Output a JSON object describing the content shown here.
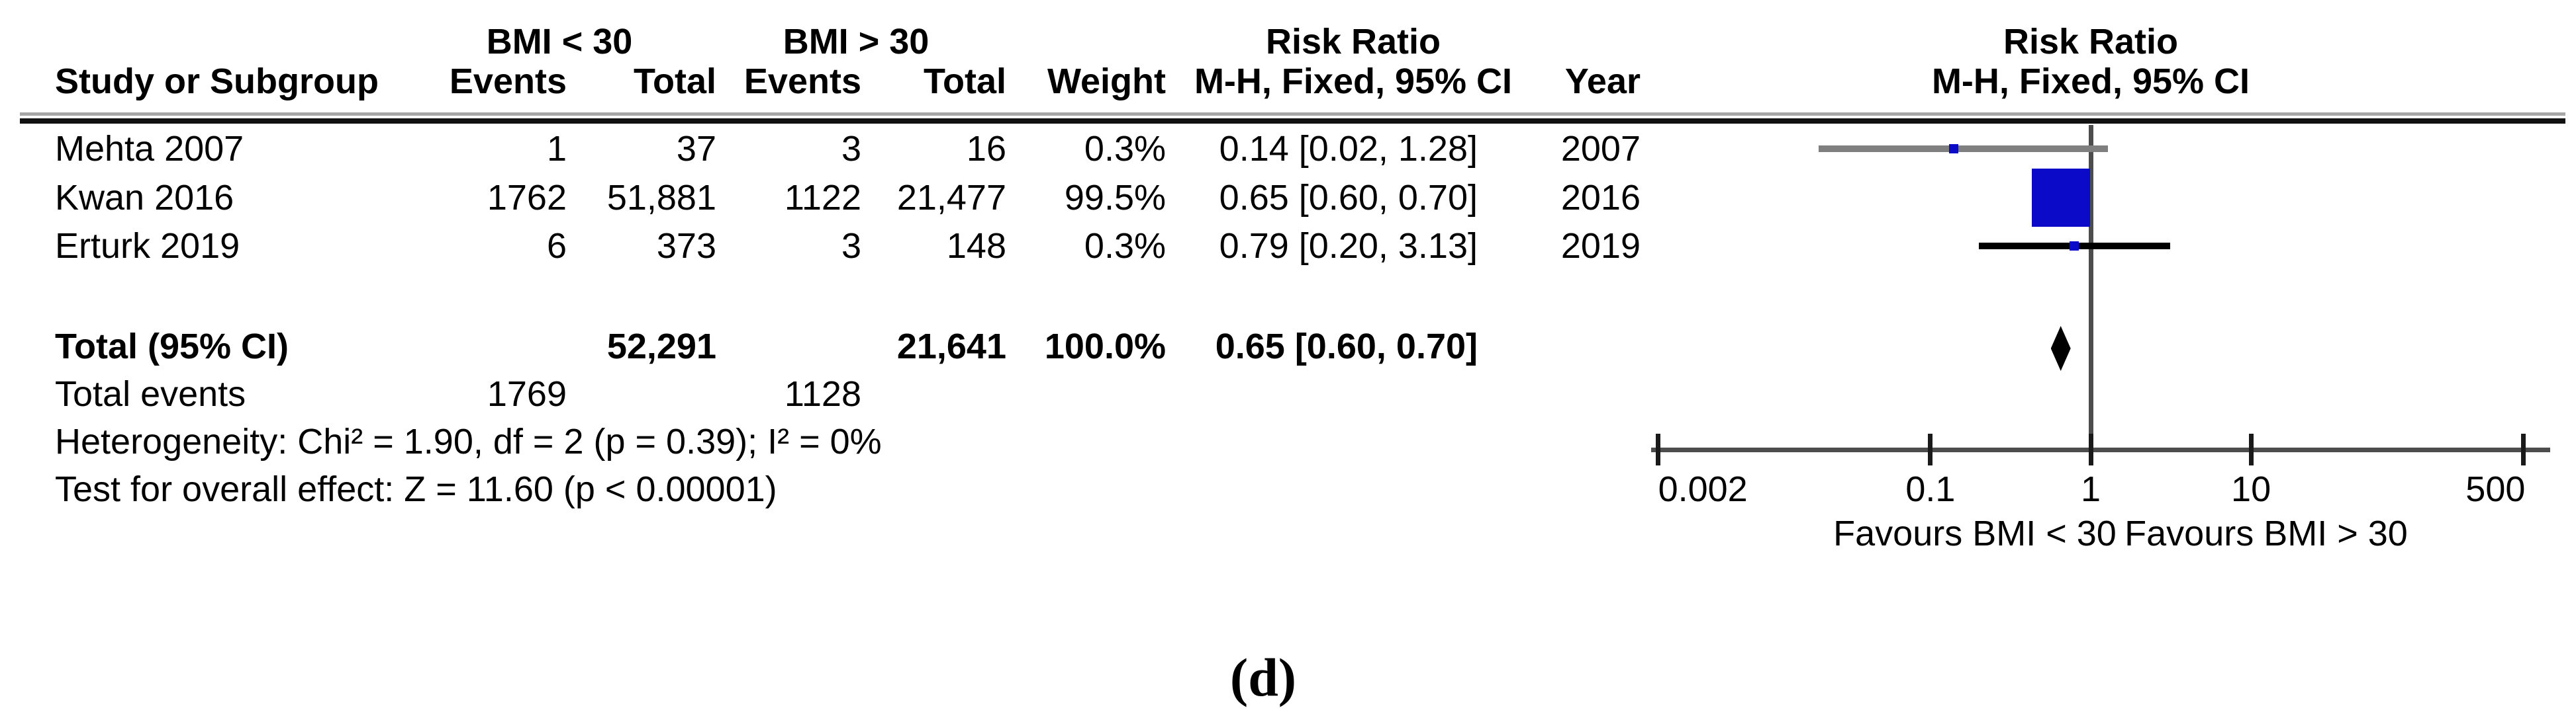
{
  "figure_label": "(d)",
  "table": {
    "group_headers": {
      "group1": "BMI < 30",
      "group2": "BMI > 30"
    },
    "rr_column_header": {
      "line1": "Risk Ratio",
      "line2": "M-H, Fixed, 95% CI"
    },
    "plot_header": {
      "line1": "Risk Ratio",
      "line2": "M-H, Fixed, 95% CI"
    },
    "col_headers": {
      "study": "Study or Subgroup",
      "events1": "Events",
      "total1": "Total",
      "events2": "Events",
      "total2": "Total",
      "weight": "Weight",
      "rr": "M-H, Fixed, 95% CI",
      "year": "Year"
    },
    "rows": [
      {
        "study": "Mehta 2007",
        "events1": "1",
        "total1": "37",
        "events2": "3",
        "total2": "16",
        "weight": "0.3%",
        "rr_ci": "0.14 [0.02, 1.28]",
        "year": "2007"
      },
      {
        "study": "Kwan 2016",
        "events1": "1762",
        "total1": "51,881",
        "events2": "1122",
        "total2": "21,477",
        "weight": "99.5%",
        "rr_ci": "0.65 [0.60, 0.70]",
        "year": "2016"
      },
      {
        "study": "Erturk 2019",
        "events1": "6",
        "total1": "373",
        "events2": "3",
        "total2": "148",
        "weight": "0.3%",
        "rr_ci": "0.79 [0.20, 3.13]",
        "year": "2019"
      }
    ],
    "total_row": {
      "label": "Total (95% CI)",
      "total1": "52,291",
      "total2": "21,641",
      "weight": "100.0%",
      "rr_ci": "0.65 [0.60, 0.70]"
    },
    "total_events_row": {
      "label": "Total events",
      "events1": "1769",
      "events2": "1128"
    },
    "heterogeneity": "Heterogeneity: Chi² = 1.90, df = 2 (p = 0.39); I² = 0%",
    "overall_effect": "Test for overall effect: Z = 11.60 (p < 0.00001)"
  },
  "chart_data": {
    "type": "forest",
    "x_scale": "log",
    "xlim": [
      0.002,
      500
    ],
    "null_value": 1,
    "x_ticks": [
      0.002,
      0.1,
      1,
      10,
      500
    ],
    "x_tick_labels": [
      "0.002",
      "0.1",
      "1",
      "10",
      "500"
    ],
    "effect_measure": "Risk Ratio, M-H, Fixed, 95% CI",
    "studies": [
      {
        "name": "Mehta 2007",
        "rr": 0.14,
        "ci_low": 0.02,
        "ci_high": 1.28,
        "weight_pct": 0.3,
        "line_color": "#7f7f7f"
      },
      {
        "name": "Kwan 2016",
        "rr": 0.65,
        "ci_low": 0.6,
        "ci_high": 0.7,
        "weight_pct": 99.5,
        "line_color": "#000000"
      },
      {
        "name": "Erturk 2019",
        "rr": 0.79,
        "ci_low": 0.2,
        "ci_high": 3.13,
        "weight_pct": 0.3,
        "line_color": "#000000"
      }
    ],
    "total": {
      "rr": 0.65,
      "ci_low": 0.6,
      "ci_high": 0.7
    },
    "favours_left": "Favours BMI < 30",
    "favours_right": "Favours BMI > 30",
    "marker_color": "#0a0ac8",
    "diamond_color": "#000000",
    "legend_position": "none",
    "grid": false
  }
}
